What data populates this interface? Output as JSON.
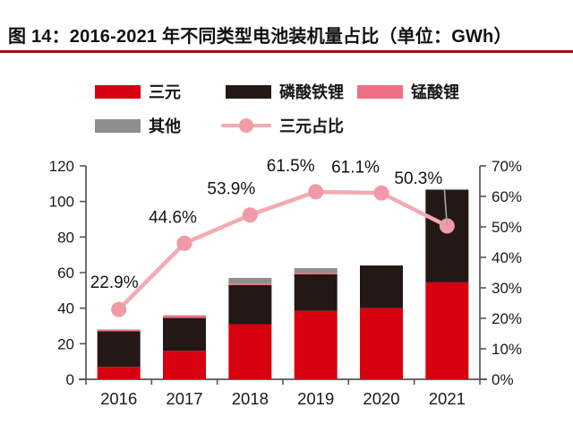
{
  "title": "图 14：2016-2021 年不同类型电池装机量占比（单位：GWh）",
  "accent_colors": {
    "title_underline": "#9c1116",
    "axis": "#565656",
    "leader_line": "#a6a6a6"
  },
  "legend": {
    "items": [
      {
        "label": "三元",
        "color": "#d7000f",
        "type": "swatch"
      },
      {
        "label": "磷酸铁锂",
        "color": "#231815",
        "type": "swatch"
      },
      {
        "label": "锰酸锂",
        "color": "#ee7082",
        "type": "swatch"
      },
      {
        "label": "其他",
        "color": "#8e8e8e",
        "type": "swatch"
      },
      {
        "label": "三元占比",
        "color": "#f4a9b3",
        "marker_color": "#f19aa7",
        "type": "line-marker"
      }
    ]
  },
  "chart_data": {
    "type": "bar",
    "subtype": "stacked-bars-with-line",
    "title": "2016-2021 年不同类型电池装机量占比",
    "unit": "GWh",
    "categories": [
      "2016",
      "2017",
      "2018",
      "2019",
      "2020",
      "2021"
    ],
    "series": [
      {
        "name": "三元",
        "axis": "left",
        "color": "#d7000f",
        "values": [
          7,
          16,
          31,
          38.5,
          40,
          54.5
        ]
      },
      {
        "name": "磷酸铁锂",
        "axis": "left",
        "color": "#231815",
        "values": [
          20,
          18.5,
          22,
          20.5,
          24,
          52
        ]
      },
      {
        "name": "锰酸锂",
        "axis": "left",
        "color": "#ee7082",
        "values": [
          1,
          1.5,
          1,
          1,
          0,
          0
        ]
      },
      {
        "name": "其他",
        "axis": "left",
        "color": "#8e8e8e",
        "values": [
          0,
          0,
          3,
          2.5,
          0,
          0.5
        ]
      }
    ],
    "line_series": {
      "name": "三元占比",
      "axis": "right",
      "color": "#f4a9b3",
      "marker_color": "#f19aa7",
      "values": [
        22.9,
        44.6,
        53.9,
        61.5,
        61.1,
        50.3
      ],
      "labels": [
        "22.9%",
        "44.6%",
        "53.9%",
        "61.5%",
        "61.1%",
        "50.3%"
      ]
    },
    "left_axis": {
      "min": 0,
      "max": 120,
      "step": 20,
      "ticks": [
        "0",
        "20",
        "40",
        "60",
        "80",
        "100",
        "120"
      ]
    },
    "right_axis": {
      "min": 0,
      "max": 70,
      "step": 10,
      "ticks": [
        "0%",
        "10%",
        "20%",
        "30%",
        "40%",
        "50%",
        "60%",
        "70%"
      ]
    },
    "grid": false,
    "legend_position": "top"
  }
}
